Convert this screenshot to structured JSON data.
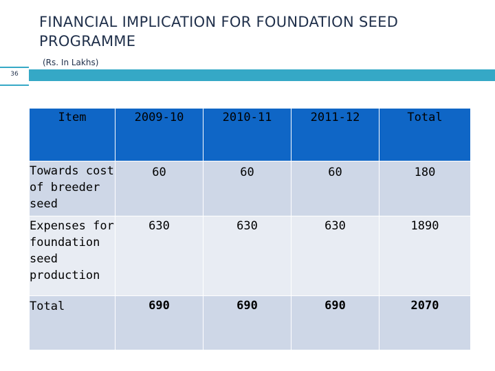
{
  "slide": {
    "title": "FINANCIAL IMPLICATION FOR FOUNDATION SEED PROGRAMME",
    "subtitle": "(Rs. In Lakhs)",
    "number": "36"
  },
  "table": {
    "headers": [
      "Item",
      "2009-10",
      "2010-11",
      "2011-12",
      "Total"
    ],
    "rows": [
      {
        "item": "Towards cost of breeder seed",
        "values": [
          "60",
          "60",
          "60",
          "180"
        ]
      },
      {
        "item": "Expenses for foundation seed production",
        "values": [
          "630",
          "630",
          "630",
          "1890"
        ]
      },
      {
        "item": "Total",
        "values": [
          "690",
          "690",
          "690",
          "2070"
        ]
      }
    ]
  },
  "colors": {
    "accent_bar": "#35a8c6",
    "header_fill": "#0f66c6",
    "row_fill_dark": "#ced7e7",
    "row_fill_light": "#e8ecf3"
  }
}
